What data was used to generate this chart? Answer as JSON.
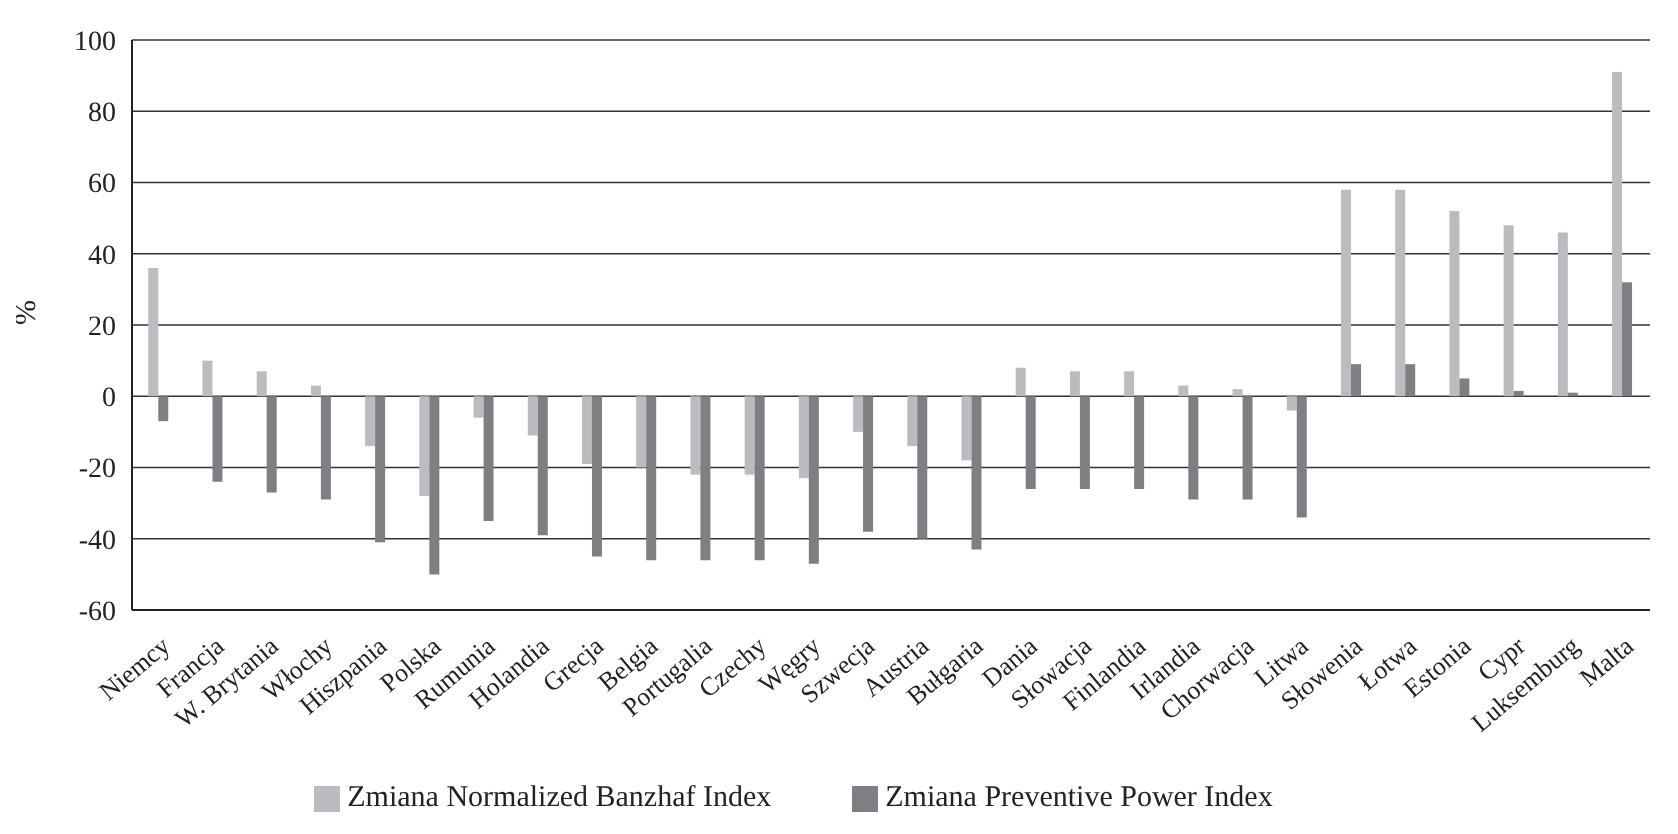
{
  "chart_data": {
    "type": "bar",
    "ylabel": "%",
    "categories": [
      "Niemcy",
      "Francja",
      "W. Brytania",
      "Włochy",
      "Hiszpania",
      "Polska",
      "Rumunia",
      "Holandia",
      "Grecja",
      "Belgia",
      "Portugalia",
      "Czechy",
      "Węgry",
      "Szwecja",
      "Austria",
      "Bułgaria",
      "Dania",
      "Słowacja",
      "Finlandia",
      "Irlandia",
      "Chorwacja",
      "Litwa",
      "Słowenia",
      "Łotwa",
      "Estonia",
      "Cypr",
      "Luksemburg",
      "Malta"
    ],
    "series": [
      {
        "name": "Zmiana Normalized Banzhaf Index",
        "color": "#bcbcc0",
        "values": [
          36,
          10,
          7,
          3,
          -14,
          -28,
          -6,
          -11,
          -19,
          -20,
          -22,
          -22,
          -23,
          -10,
          -14,
          -18,
          8,
          7,
          7,
          3,
          2,
          -4,
          58,
          58,
          52,
          48,
          46,
          91
        ]
      },
      {
        "name": "Zmiana Preventive Power Index",
        "color": "#7f7f83",
        "values": [
          -7,
          -24,
          -27,
          -29,
          -41,
          -50,
          -35,
          -39,
          -45,
          -46,
          -46,
          -46,
          -47,
          -38,
          -40,
          -43,
          -26,
          -26,
          -26,
          -29,
          -29,
          -34,
          9,
          9,
          5,
          1.5,
          1,
          32
        ]
      }
    ],
    "ylim": [
      -60,
      100
    ],
    "yticks": [
      -60,
      -40,
      -20,
      0,
      20,
      40,
      60,
      80,
      100
    ],
    "grid": "y",
    "legend": "bottom"
  }
}
